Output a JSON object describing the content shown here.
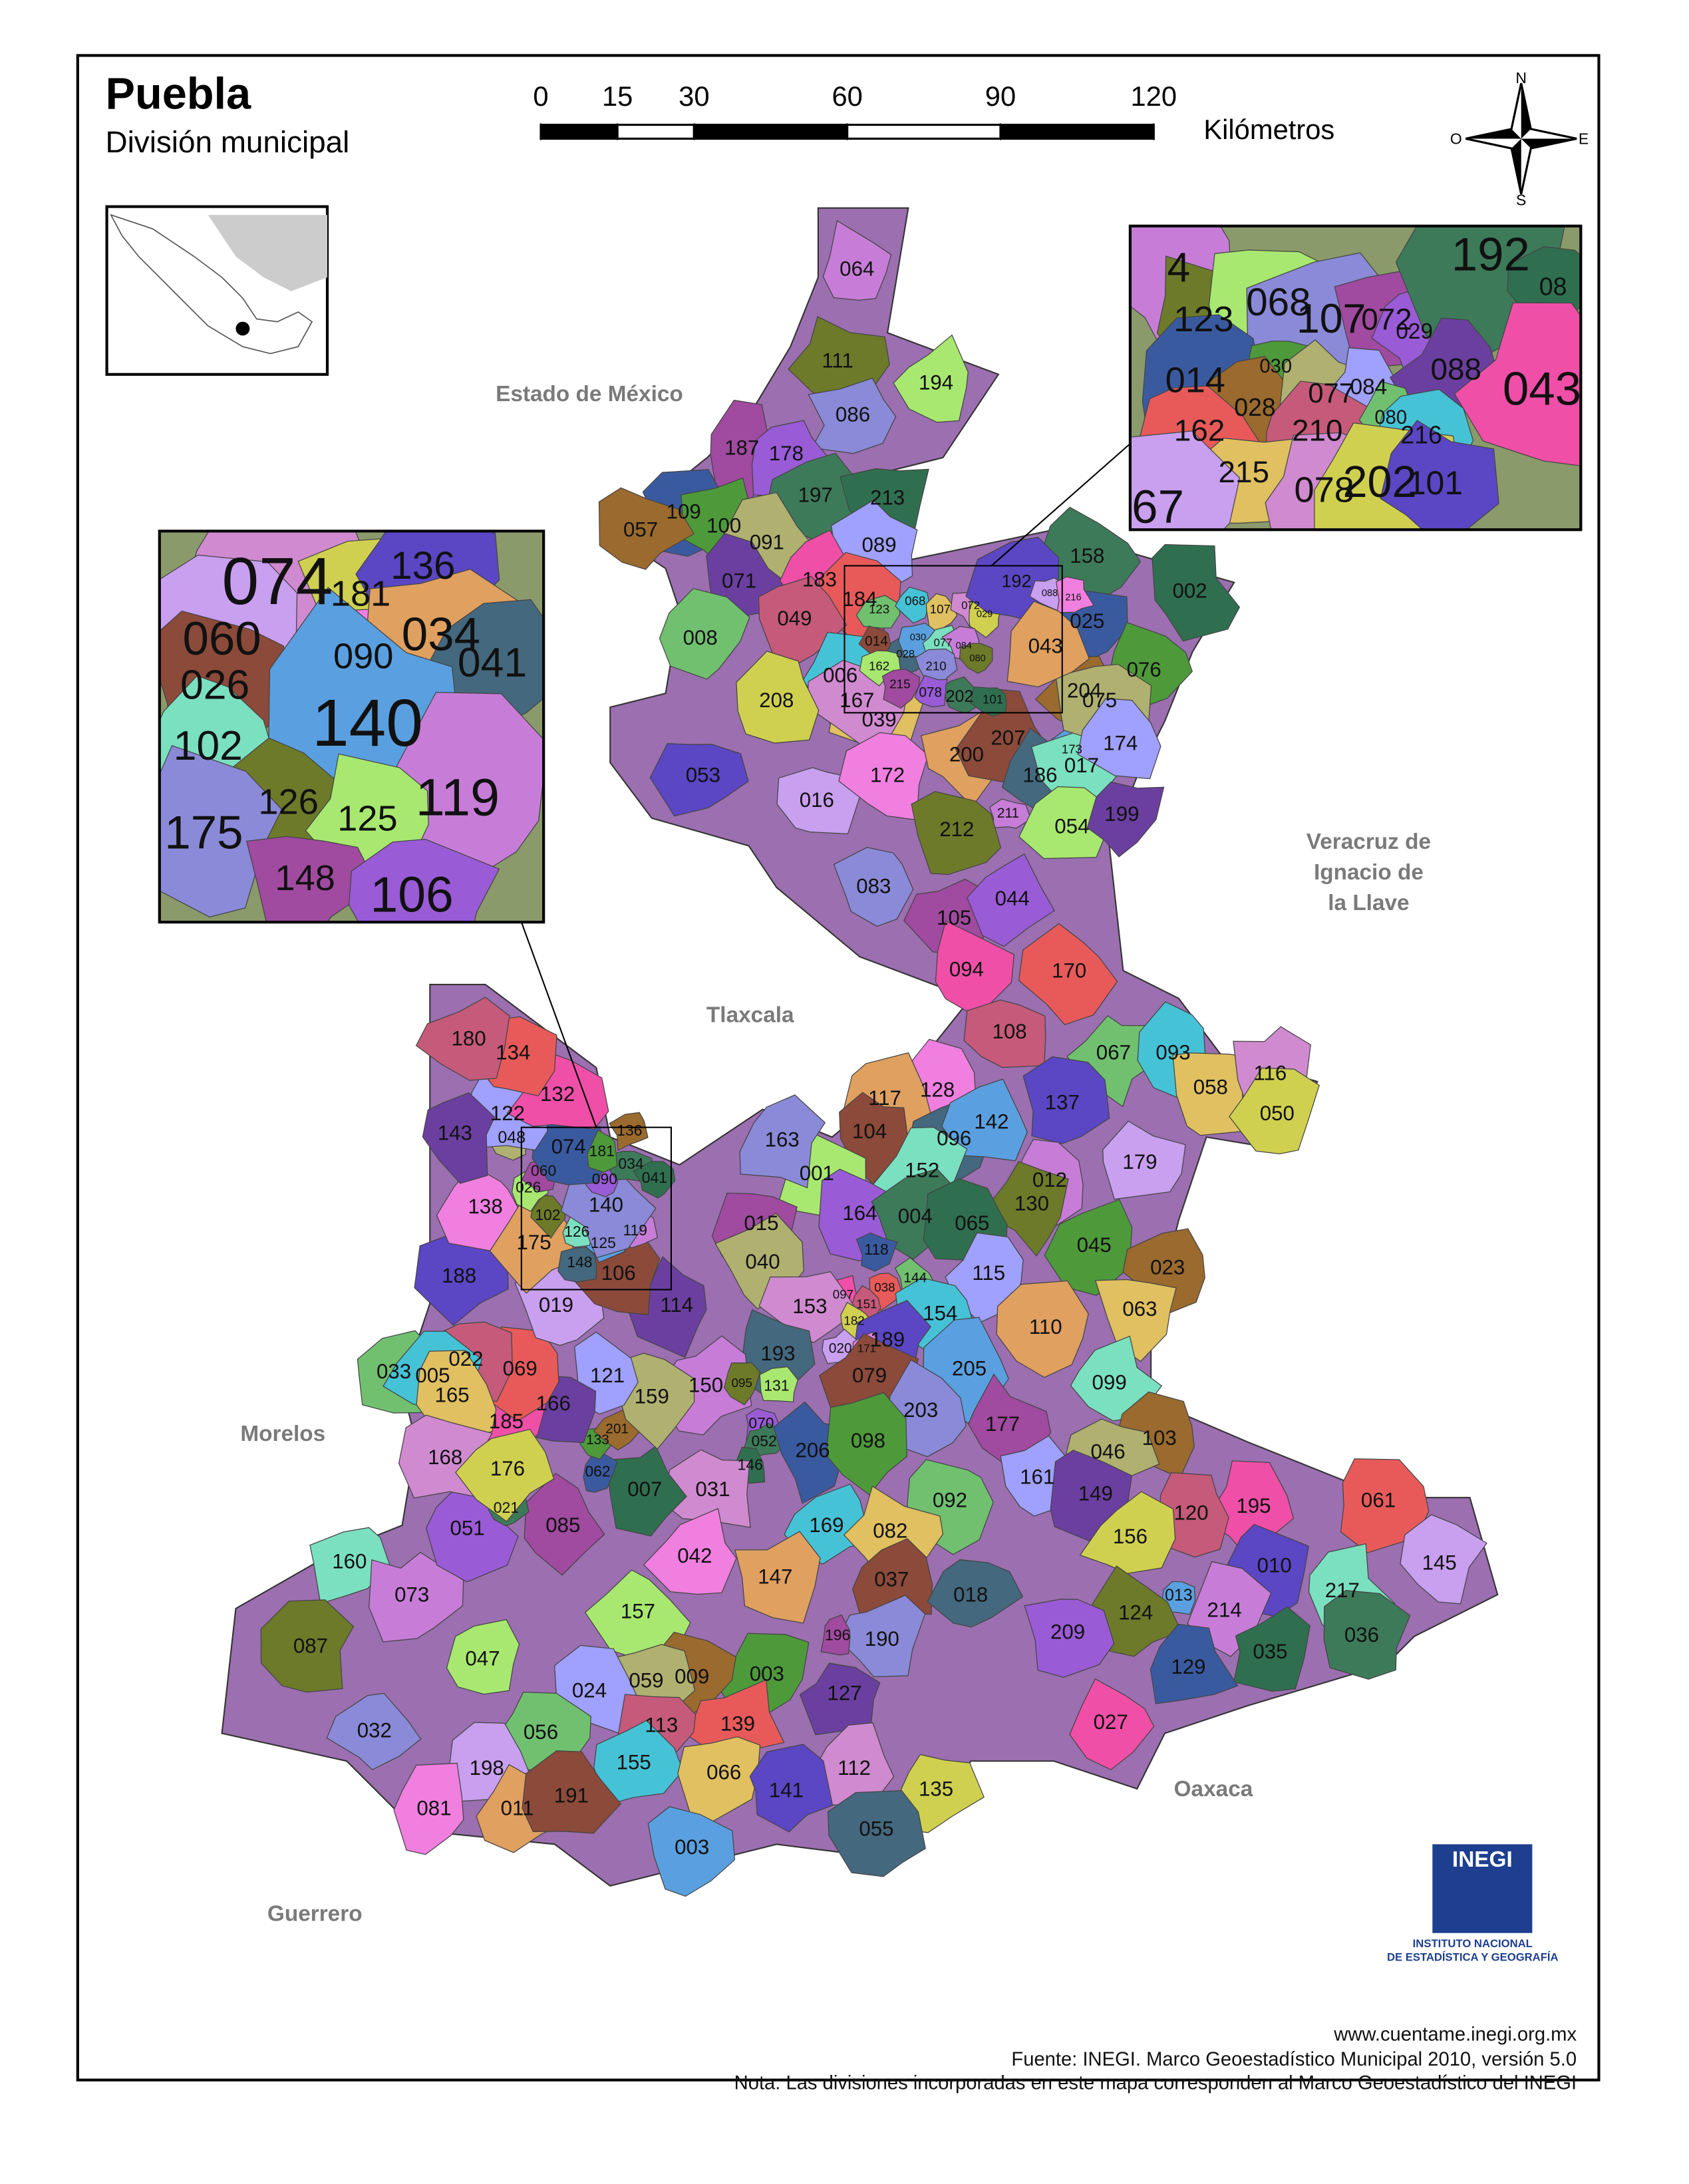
{
  "header": {
    "title": "Puebla",
    "subtitle": "División municipal"
  },
  "scale": {
    "ticks": [
      0,
      15,
      30,
      60,
      90,
      120
    ],
    "unit": "Kilómetros"
  },
  "compass": {
    "north": "N",
    "south": "S",
    "west": "O",
    "east": "E"
  },
  "neighbors": [
    [
      "Estado de México"
    ],
    [
      "Veracruz de",
      "Ignacio de",
      "la Llave"
    ],
    [
      "Tlaxcala"
    ],
    [
      "Morelos"
    ],
    [
      "Oaxaca"
    ],
    [
      "Guerrero"
    ]
  ],
  "municipalities": [
    "064",
    "111",
    "194",
    "086",
    "187",
    "178",
    "197",
    "213",
    "109",
    "100",
    "057",
    "091",
    "089",
    "071",
    "183",
    "184",
    "049",
    "008",
    "006",
    "039",
    "167",
    "208",
    "053",
    "016",
    "172",
    "200",
    "207",
    "186",
    "173",
    "017",
    "211",
    "212",
    "054",
    "083",
    "105",
    "044",
    "158",
    "002",
    "025",
    "076",
    "204",
    "075",
    "174",
    "199",
    "094",
    "170",
    "108",
    "067",
    "093",
    "058",
    "116",
    "050",
    "137",
    "179",
    "128",
    "117",
    "104",
    "096",
    "142",
    "152",
    "012",
    "130",
    "001",
    "163",
    "015",
    "164",
    "004",
    "065",
    "118",
    "045",
    "023",
    "040",
    "115",
    "114",
    "097",
    "038",
    "151",
    "144",
    "154",
    "063",
    "153",
    "182",
    "189",
    "020",
    "171",
    "110",
    "079",
    "193",
    "205",
    "099",
    "150",
    "095",
    "131",
    "203",
    "177",
    "070",
    "052",
    "146",
    "206",
    "098",
    "103",
    "046",
    "161",
    "149",
    "195",
    "061",
    "120",
    "092",
    "169",
    "082",
    "031",
    "156",
    "010",
    "145",
    "042",
    "147",
    "037",
    "018",
    "013",
    "217",
    "214",
    "124",
    "157",
    "190",
    "196",
    "209",
    "036",
    "035",
    "129",
    "003",
    "009",
    "059",
    "024",
    "127",
    "027",
    "139",
    "113",
    "056",
    "155",
    "066",
    "112",
    "135",
    "141",
    "198",
    "081",
    "011",
    "191",
    "055",
    "003",
    "160",
    "073",
    "087",
    "047",
    "032",
    "085",
    "051",
    "021",
    "007",
    "062",
    "133",
    "201",
    "159",
    "121",
    "166",
    "185",
    "069",
    "022",
    "033",
    "005",
    "165",
    "168",
    "176",
    "188",
    "019",
    "138",
    "175",
    "106",
    "148",
    "125",
    "126",
    "119",
    "102",
    "026",
    "140",
    "060",
    "090",
    "034",
    "041",
    "074",
    "181",
    "136",
    "048",
    "122",
    "143",
    "132",
    "134",
    "180",
    "123",
    "068",
    "107",
    "072",
    "029",
    "192",
    "088",
    "216",
    "043",
    "014",
    "028",
    "030",
    "077",
    "084",
    "080",
    "162",
    "210",
    "215",
    "078",
    "202",
    "101"
  ],
  "insets": [
    {
      "labels": [
        "4",
        "123",
        "068",
        "107",
        "072",
        "029",
        "192",
        "08",
        "014",
        "030",
        "028",
        "077",
        "084",
        "088",
        "043",
        "162",
        "210",
        "080",
        "216",
        "215",
        "078",
        "202",
        "101",
        "67"
      ]
    },
    {
      "labels": [
        "074",
        "181",
        "136",
        "060",
        "090",
        "034",
        "026",
        "041",
        "140",
        "102",
        "119",
        "126",
        "125",
        "175",
        "148",
        "106"
      ]
    }
  ],
  "logo": {
    "name": "INEGI",
    "line1": "INSTITUTO NACIONAL",
    "line2": "DE ESTADÍSTICA Y GEOGRAFÍA"
  },
  "footer": [
    "www.cuentame.inegi.org.mx",
    "Fuente: INEGI. Marco Geoestadístico Municipal 2010, versión 5.0",
    "Nota: Las divisiones incorporadas en este mapa corresponden al Marco Geoestadístico del INEGI"
  ]
}
